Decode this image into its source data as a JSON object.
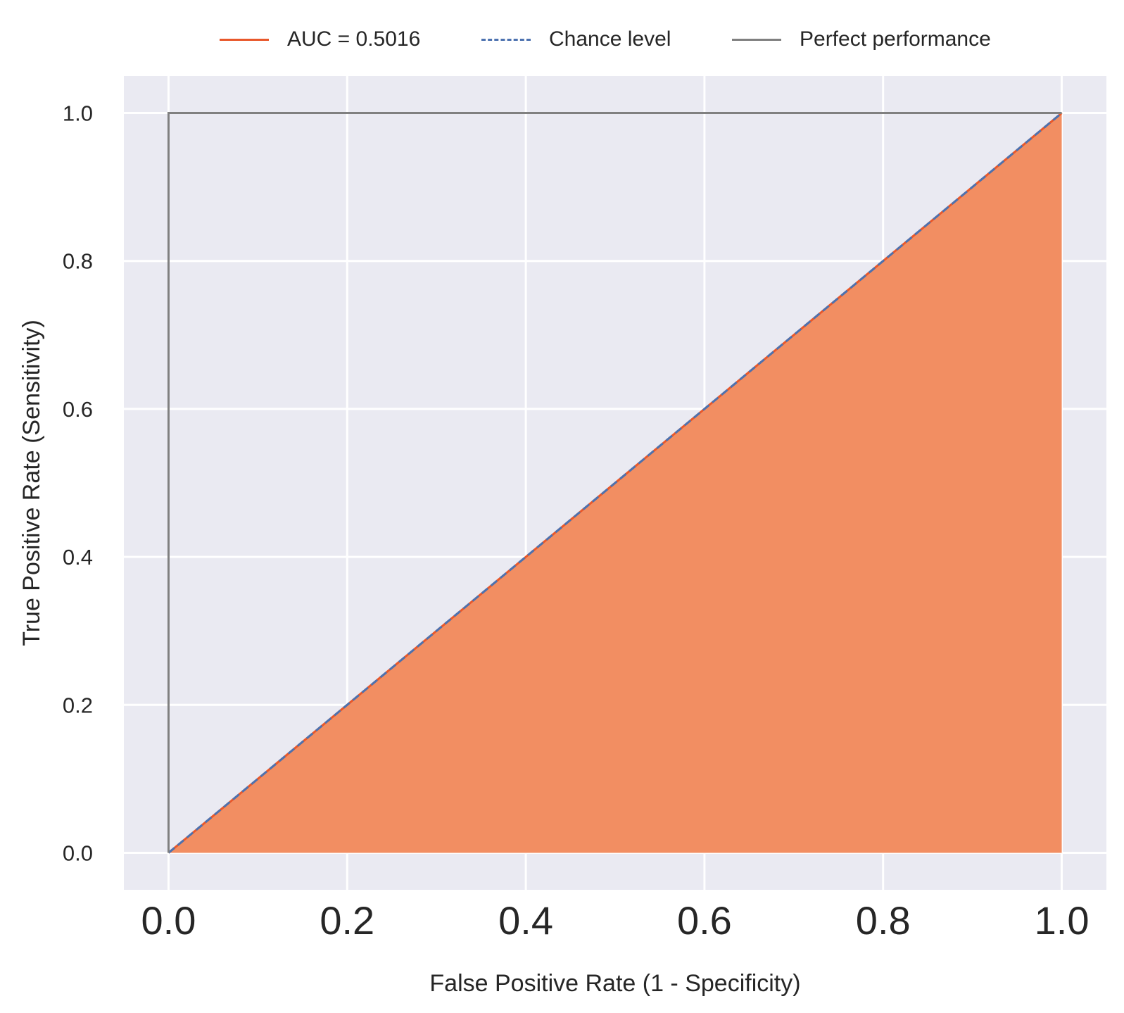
{
  "chart_data": {
    "type": "line",
    "xlabel": "False Positive Rate (1 - Specificity)",
    "ylabel": "True Positive Rate (Sensitivity)",
    "xlim": [
      -0.05,
      1.05
    ],
    "ylim": [
      -0.05,
      1.05
    ],
    "x_ticks": [
      "0.0",
      "0.2",
      "0.4",
      "0.6",
      "0.8",
      "1.0"
    ],
    "y_ticks": [
      "0.0",
      "0.2",
      "0.4",
      "0.6",
      "0.8",
      "1.0"
    ],
    "grid": true,
    "legend_position": "top-center",
    "series": [
      {
        "name": "AUC = 0.5016",
        "style": "solid",
        "color": "#e8582b",
        "x": [
          0.0,
          1.0
        ],
        "y": [
          0.0,
          1.0
        ],
        "fill_below": true,
        "fill_color": "#f28e62"
      },
      {
        "name": "Chance level",
        "style": "dashed",
        "color": "#4c72b0",
        "x": [
          0.0,
          1.0
        ],
        "y": [
          0.0,
          1.0
        ]
      },
      {
        "name": "Perfect performance",
        "style": "solid",
        "color": "#808080",
        "x": [
          0.0,
          0.0,
          1.0
        ],
        "y": [
          0.0,
          1.0,
          1.0
        ]
      }
    ],
    "colors": {
      "plot_background": "#eaeaf2",
      "grid": "#ffffff"
    }
  }
}
